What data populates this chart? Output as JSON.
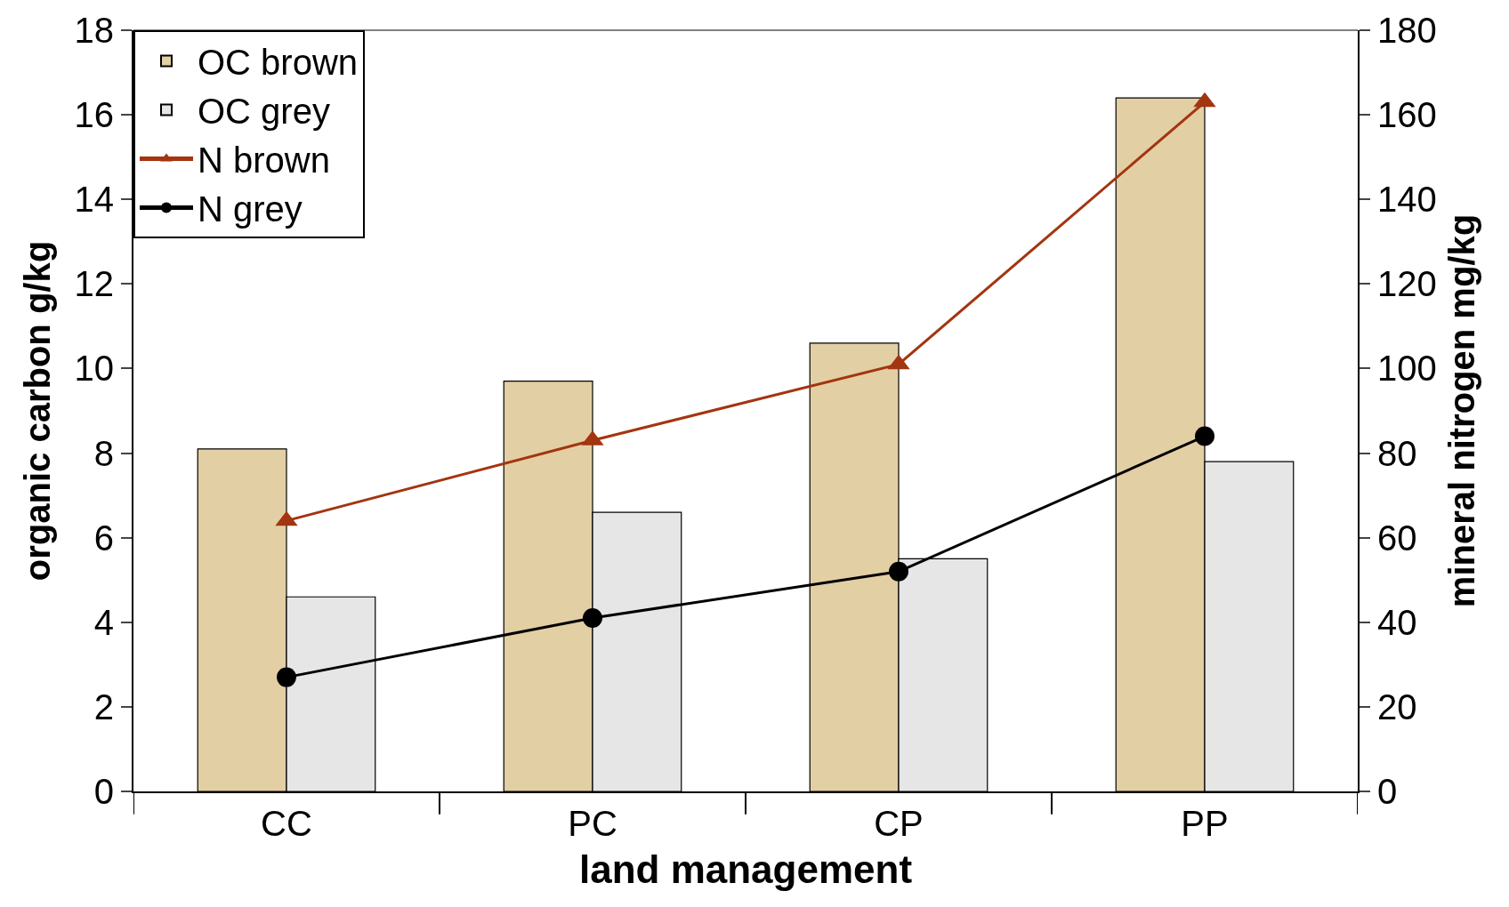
{
  "chart_data": {
    "type": "bar",
    "xlabel": "land management",
    "ylabel": "organic carbon g/kg",
    "y2label": "mineral nitrogen mg/kg",
    "categories": [
      "CC",
      "PC",
      "CP",
      "PP"
    ],
    "series": [
      {
        "name": "OC brown",
        "color": "#e3cfa4",
        "values": [
          8.1,
          9.7,
          10.6,
          16.4
        ]
      },
      {
        "name": "OC grey",
        "color": "#e6e6e6",
        "values": [
          4.6,
          6.6,
          5.5,
          7.8
        ]
      },
      {
        "name": "N brown",
        "type": "line",
        "axis": "y2",
        "marker": "triangle",
        "color": "#a33510",
        "values": [
          64,
          83,
          101,
          163
        ]
      },
      {
        "name": "N grey",
        "type": "line",
        "axis": "y2",
        "marker": "circle",
        "color": "#000000",
        "values": [
          27,
          41,
          52,
          84
        ]
      }
    ],
    "ylim": [
      0,
      18
    ],
    "yticks": [
      0,
      2,
      4,
      6,
      8,
      10,
      12,
      14,
      16,
      18
    ],
    "y2lim": [
      0,
      180
    ],
    "y2ticks": [
      0,
      20,
      40,
      60,
      80,
      100,
      120,
      140,
      160,
      180
    ],
    "legend": "top left",
    "line_style": "solid"
  }
}
